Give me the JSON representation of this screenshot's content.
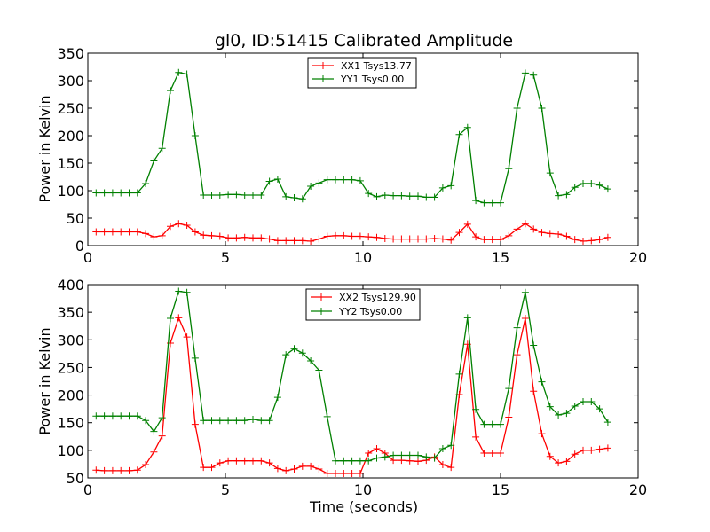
{
  "chart_data": [
    {
      "type": "line",
      "title": "gl0, ID:51415 Calibrated Amplitude",
      "xlabel": "",
      "ylabel": "Power in Kelvin",
      "xlim": [
        0,
        20
      ],
      "ylim": [
        0,
        350
      ],
      "x_ticks": [
        0,
        5,
        10,
        15,
        20
      ],
      "y_ticks": [
        0,
        50,
        100,
        150,
        200,
        250,
        300,
        350
      ],
      "legend_position": "top-center",
      "series": [
        {
          "name": "XX1 Tsys13.77",
          "color": "#ff0000",
          "x": [
            0.3,
            0.6,
            0.9,
            1.2,
            1.5,
            1.8,
            2.1,
            2.4,
            2.7,
            3.0,
            3.3,
            3.6,
            3.9,
            4.2,
            4.5,
            4.8,
            5.1,
            5.4,
            5.7,
            6.0,
            6.3,
            6.6,
            6.9,
            7.2,
            7.5,
            7.8,
            8.1,
            8.4,
            8.7,
            9.0,
            9.3,
            9.6,
            9.9,
            10.2,
            10.5,
            10.8,
            11.1,
            11.4,
            11.7,
            12.0,
            12.3,
            12.6,
            12.9,
            13.2,
            13.5,
            13.8,
            14.1,
            14.4,
            14.7,
            15.0,
            15.3,
            15.6,
            15.9,
            16.2,
            16.5,
            16.8,
            17.1,
            17.4,
            17.7,
            18.0,
            18.3,
            18.6,
            18.9
          ],
          "y": [
            25,
            25,
            25,
            25,
            25,
            25,
            22,
            16,
            18,
            35,
            40,
            37,
            25,
            19,
            18,
            17,
            14,
            14,
            15,
            14,
            14,
            12,
            9,
            9,
            9,
            9,
            8,
            12,
            17,
            18,
            18,
            17,
            17,
            16,
            15,
            13,
            12,
            12,
            12,
            12,
            12,
            13,
            12,
            10,
            24,
            39,
            16,
            11,
            11,
            11,
            18,
            30,
            40,
            30,
            24,
            22,
            21,
            17,
            11,
            8,
            9,
            11,
            15
          ]
        },
        {
          "name": "YY1 Tsys0.00",
          "color": "#008000",
          "x": [
            0.3,
            0.6,
            0.9,
            1.2,
            1.5,
            1.8,
            2.1,
            2.4,
            2.7,
            3.0,
            3.3,
            3.6,
            3.9,
            4.2,
            4.5,
            4.8,
            5.1,
            5.4,
            5.7,
            6.0,
            6.3,
            6.6,
            6.9,
            7.2,
            7.5,
            7.8,
            8.1,
            8.4,
            8.7,
            9.0,
            9.3,
            9.6,
            9.9,
            10.2,
            10.5,
            10.8,
            11.1,
            11.4,
            11.7,
            12.0,
            12.3,
            12.6,
            12.9,
            13.2,
            13.5,
            13.8,
            14.1,
            14.4,
            14.7,
            15.0,
            15.3,
            15.6,
            15.9,
            16.2,
            16.5,
            16.8,
            17.1,
            17.4,
            17.7,
            18.0,
            18.3,
            18.6,
            18.9
          ],
          "y": [
            96,
            96,
            96,
            96,
            96,
            96,
            113,
            154,
            177,
            282,
            315,
            312,
            200,
            92,
            92,
            92,
            93,
            93,
            92,
            92,
            92,
            117,
            121,
            89,
            87,
            85,
            108,
            114,
            120,
            120,
            120,
            120,
            118,
            95,
            89,
            92,
            91,
            91,
            90,
            90,
            88,
            88,
            105,
            109,
            202,
            215,
            82,
            78,
            78,
            78,
            140,
            250,
            314,
            310,
            250,
            132,
            91,
            93,
            106,
            113,
            113,
            110,
            103
          ]
        }
      ]
    },
    {
      "type": "line",
      "title": "",
      "xlabel": "Time (seconds)",
      "ylabel": "Power in Kelvin",
      "xlim": [
        0,
        20
      ],
      "ylim": [
        50,
        400
      ],
      "x_ticks": [
        0,
        5,
        10,
        15,
        20
      ],
      "y_ticks": [
        50,
        100,
        150,
        200,
        250,
        300,
        350,
        400
      ],
      "legend_position": "top-center",
      "series": [
        {
          "name": "XX2 Tsys129.90",
          "color": "#ff0000",
          "x": [
            0.3,
            0.6,
            0.9,
            1.2,
            1.5,
            1.8,
            2.1,
            2.4,
            2.7,
            3.0,
            3.3,
            3.6,
            3.9,
            4.2,
            4.5,
            4.8,
            5.1,
            5.4,
            5.7,
            6.0,
            6.3,
            6.6,
            6.9,
            7.2,
            7.5,
            7.8,
            8.1,
            8.4,
            8.7,
            9.0,
            9.3,
            9.6,
            9.9,
            10.2,
            10.5,
            10.8,
            11.1,
            11.4,
            11.7,
            12.0,
            12.3,
            12.6,
            12.9,
            13.2,
            13.5,
            13.8,
            14.1,
            14.4,
            14.7,
            15.0,
            15.3,
            15.6,
            15.9,
            16.2,
            16.5,
            16.8,
            17.1,
            17.4,
            17.7,
            18.0,
            18.3,
            18.6,
            18.9
          ],
          "y": [
            64,
            63,
            63,
            63,
            63,
            64,
            74,
            97,
            126,
            294,
            340,
            305,
            147,
            69,
            69,
            77,
            81,
            81,
            81,
            81,
            81,
            77,
            67,
            63,
            66,
            71,
            71,
            66,
            58,
            58,
            58,
            58,
            58,
            95,
            103,
            95,
            82,
            82,
            81,
            80,
            82,
            88,
            74,
            69,
            201,
            292,
            124,
            95,
            95,
            95,
            160,
            273,
            339,
            207,
            130,
            89,
            77,
            80,
            93,
            100,
            100,
            102,
            104
          ]
        },
        {
          "name": "YY2 Tsys0.00",
          "color": "#008000",
          "x": [
            0.3,
            0.6,
            0.9,
            1.2,
            1.5,
            1.8,
            2.1,
            2.4,
            2.7,
            3.0,
            3.3,
            3.6,
            3.9,
            4.2,
            4.5,
            4.8,
            5.1,
            5.4,
            5.7,
            6.0,
            6.3,
            6.6,
            6.9,
            7.2,
            7.5,
            7.8,
            8.1,
            8.4,
            8.7,
            9.0,
            9.3,
            9.6,
            9.9,
            10.2,
            10.5,
            10.8,
            11.1,
            11.4,
            11.7,
            12.0,
            12.3,
            12.6,
            12.9,
            13.2,
            13.5,
            13.8,
            14.1,
            14.4,
            14.7,
            15.0,
            15.3,
            15.6,
            15.9,
            16.2,
            16.5,
            16.8,
            17.1,
            17.4,
            17.7,
            18.0,
            18.3,
            18.6,
            18.9
          ],
          "y": [
            162,
            162,
            162,
            162,
            162,
            162,
            154,
            134,
            159,
            339,
            388,
            386,
            267,
            154,
            154,
            154,
            154,
            154,
            154,
            156,
            154,
            154,
            196,
            273,
            284,
            276,
            262,
            245,
            161,
            81,
            81,
            81,
            81,
            81,
            86,
            88,
            91,
            91,
            91,
            91,
            88,
            86,
            103,
            109,
            238,
            340,
            174,
            147,
            147,
            147,
            212,
            322,
            386,
            290,
            224,
            179,
            164,
            167,
            180,
            188,
            188,
            175,
            151
          ]
        }
      ]
    }
  ]
}
